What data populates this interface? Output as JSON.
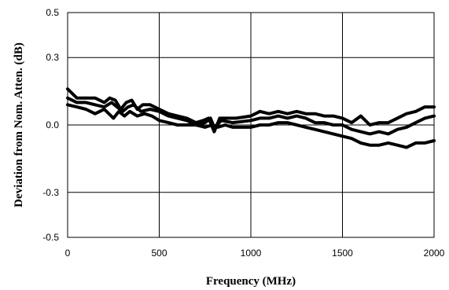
{
  "chart_data": {
    "type": "line",
    "title": "",
    "xlabel": "Frequency (MHz)",
    "ylabel": "Deviation from Nom. Atten. (dB)",
    "xlim": [
      0,
      2000
    ],
    "ylim": [
      -0.5,
      0.5
    ],
    "x_ticks": [
      0,
      500,
      1000,
      1500,
      2000
    ],
    "y_ticks": [
      0.5,
      0.3,
      0.0,
      -0.3,
      -0.5
    ],
    "x_tick_labels": [
      "0",
      "500",
      "1000",
      "1500",
      "2000"
    ],
    "y_tick_labels": [
      "0.5",
      "0.3",
      "0.0",
      "-0.3",
      "-0.5"
    ],
    "grid": true,
    "legend": "none",
    "series": [
      {
        "x": [
          0,
          50,
          100,
          150,
          200,
          230,
          260,
          290,
          320,
          350,
          380,
          410,
          450,
          500,
          550,
          600,
          650,
          700,
          740,
          770,
          800,
          830,
          870,
          920,
          1000,
          1050,
          1100,
          1150,
          1200,
          1250,
          1300,
          1350,
          1400,
          1450,
          1500,
          1550,
          1600,
          1650,
          1700,
          1750,
          1800,
          1850,
          1900,
          1950,
          2000
        ],
        "values": [
          0.16,
          0.12,
          0.12,
          0.12,
          0.1,
          0.12,
          0.11,
          0.07,
          0.1,
          0.11,
          0.07,
          0.09,
          0.09,
          0.07,
          0.05,
          0.04,
          0.03,
          0.01,
          0.02,
          0.03,
          -0.03,
          0.03,
          0.03,
          0.03,
          0.04,
          0.06,
          0.05,
          0.06,
          0.05,
          0.06,
          0.05,
          0.05,
          0.04,
          0.04,
          0.03,
          0.01,
          0.04,
          0.0,
          0.01,
          0.01,
          0.03,
          0.05,
          0.06,
          0.08,
          0.08
        ]
      },
      {
        "x": [
          0,
          50,
          100,
          150,
          200,
          240,
          270,
          300,
          330,
          360,
          400,
          450,
          500,
          550,
          600,
          650,
          700,
          750,
          780,
          800,
          840,
          900,
          1000,
          1050,
          1100,
          1150,
          1200,
          1250,
          1300,
          1350,
          1400,
          1450,
          1500,
          1550,
          1600,
          1650,
          1700,
          1750,
          1800,
          1850,
          1900,
          1950,
          2000
        ],
        "values": [
          0.12,
          0.1,
          0.1,
          0.09,
          0.08,
          0.1,
          0.08,
          0.06,
          0.08,
          0.09,
          0.06,
          0.07,
          0.06,
          0.04,
          0.03,
          0.02,
          0.0,
          0.01,
          0.03,
          -0.01,
          0.02,
          0.01,
          0.02,
          0.03,
          0.03,
          0.04,
          0.03,
          0.04,
          0.03,
          0.01,
          0.01,
          0.0,
          0.0,
          -0.02,
          -0.03,
          -0.04,
          -0.03,
          -0.04,
          -0.02,
          -0.01,
          0.01,
          0.03,
          0.04
        ]
      },
      {
        "x": [
          0,
          50,
          100,
          150,
          200,
          250,
          280,
          310,
          340,
          380,
          420,
          460,
          500,
          550,
          600,
          650,
          700,
          750,
          790,
          820,
          860,
          900,
          1000,
          1050,
          1100,
          1150,
          1200,
          1250,
          1300,
          1350,
          1400,
          1450,
          1500,
          1550,
          1600,
          1650,
          1700,
          1750,
          1800,
          1850,
          1900,
          1950,
          2000
        ],
        "values": [
          0.09,
          0.08,
          0.07,
          0.05,
          0.07,
          0.03,
          0.06,
          0.04,
          0.06,
          0.04,
          0.05,
          0.04,
          0.02,
          0.01,
          0.0,
          0.0,
          0.0,
          -0.01,
          0.0,
          -0.01,
          0.0,
          -0.01,
          -0.01,
          0.0,
          0.0,
          0.01,
          0.01,
          0.0,
          -0.01,
          -0.02,
          -0.03,
          -0.04,
          -0.05,
          -0.06,
          -0.08,
          -0.09,
          -0.09,
          -0.08,
          -0.09,
          -0.1,
          -0.08,
          -0.08,
          -0.07
        ]
      }
    ]
  }
}
